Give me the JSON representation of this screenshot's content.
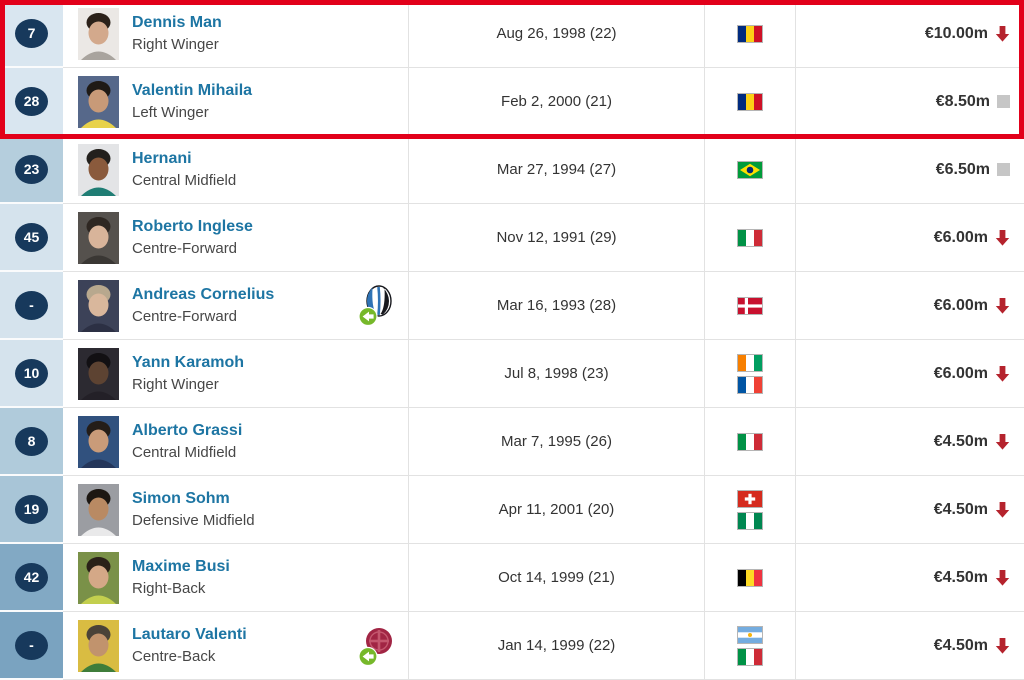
{
  "colors": {
    "highlight_border": "#e2001a",
    "badge_bg": "#17395c",
    "badge_text": "#ffffff",
    "name_link": "#1d75a3",
    "position_text": "#474747",
    "date_text": "#333333",
    "value_text": "#333333",
    "arrow_down": "#b5232d",
    "unchanged_square": "#c6c6c6",
    "row_border": "#e2e2e2",
    "loan_arrow_green": "#76b82a"
  },
  "highlight_box": {
    "rows_highlighted": [
      "Dennis Man",
      "Valentin Mihaila"
    ]
  },
  "players": [
    {
      "number": "7",
      "name": "Dennis Man",
      "position": "Right Winger",
      "birth_date_age": "Aug 26, 1998 (22)",
      "nationalities": [
        "Romania"
      ],
      "market_value": "€10.00m",
      "value_trend": "down",
      "highlighted": true,
      "number_cell_bg": "#d9e6f0",
      "photo_colors": {
        "bg": "#ebe8e5",
        "hair": "#2b2119",
        "skin": "#d3a98c",
        "shirt": "#a9a49e"
      }
    },
    {
      "number": "28",
      "name": "Valentin Mihaila",
      "position": "Left Winger",
      "birth_date_age": "Feb 2, 2000 (21)",
      "nationalities": [
        "Romania"
      ],
      "market_value": "€8.50m",
      "value_trend": "same",
      "highlighted": true,
      "number_cell_bg": "#d9e6f0",
      "photo_colors": {
        "bg": "#56688a",
        "hair": "#1f1a16",
        "skin": "#c89a78",
        "shirt": "#e8d24a"
      }
    },
    {
      "number": "23",
      "name": "Hernani",
      "position": "Central Midfield",
      "birth_date_age": "Mar 27, 1994 (27)",
      "nationalities": [
        "Brazil"
      ],
      "market_value": "€6.50m",
      "value_trend": "same",
      "highlighted": false,
      "number_cell_bg": "#b5cedd",
      "photo_colors": {
        "bg": "#e3e4e6",
        "hair": "#23201d",
        "skin": "#8a5a3c",
        "shirt": "#1f7d74"
      }
    },
    {
      "number": "45",
      "name": "Roberto Inglese",
      "position": "Centre-Forward",
      "birth_date_age": "Nov 12, 1991 (29)",
      "nationalities": [
        "Italy"
      ],
      "market_value": "€6.00m",
      "value_trend": "down",
      "highlighted": false,
      "number_cell_bg": "#d5e3ed",
      "photo_colors": {
        "bg": "#55514d",
        "hair": "#2e2722",
        "skin": "#d8b49a",
        "shirt": "#3a3734"
      }
    },
    {
      "number": "-",
      "name": "Andreas Cornelius",
      "position": "Centre-Forward",
      "birth_date_age": "Mar 16, 1993 (28)",
      "nationalities": [
        "Denmark"
      ],
      "market_value": "€6.00m",
      "value_trend": "down",
      "highlighted": false,
      "number_cell_bg": "#d5e3ed",
      "loan_icon": {
        "name": "loan-club-icon",
        "club_shape": "oval",
        "primary": "#2f73b5",
        "secondary": "#17181d",
        "arrow_color": "#76b82a"
      },
      "photo_colors": {
        "bg": "#3c4258",
        "hair": "#b8a88e",
        "skin": "#d9b79c",
        "shirt": "#2c3044"
      }
    },
    {
      "number": "10",
      "name": "Yann Karamoh",
      "position": "Right Winger",
      "birth_date_age": "Jul 8, 1998 (23)",
      "nationalities": [
        "Ivory Coast",
        "France"
      ],
      "market_value": "€6.00m",
      "value_trend": "down",
      "highlighted": false,
      "number_cell_bg": "#d5e3ed",
      "photo_colors": {
        "bg": "#2c2a31",
        "hair": "#121013",
        "skin": "#5d4332",
        "shirt": "#232027"
      }
    },
    {
      "number": "8",
      "name": "Alberto Grassi",
      "position": "Central Midfield",
      "birth_date_age": "Mar 7, 1995 (26)",
      "nationalities": [
        "Italy"
      ],
      "market_value": "€4.50m",
      "value_trend": "down",
      "highlighted": false,
      "number_cell_bg": "#b0cbdb",
      "photo_colors": {
        "bg": "#31517e",
        "hair": "#241d18",
        "skin": "#c99b79",
        "shirt": "#24365a"
      }
    },
    {
      "number": "19",
      "name": "Simon Sohm",
      "position": "Defensive Midfield",
      "birth_date_age": "Apr 11, 2001 (20)",
      "nationalities": [
        "Switzerland",
        "Nigeria"
      ],
      "market_value": "€4.50m",
      "value_trend": "down",
      "highlighted": false,
      "number_cell_bg": "#a8c5d7",
      "photo_colors": {
        "bg": "#9b9da2",
        "hair": "#1c1712",
        "skin": "#b98a63",
        "shirt": "#e9e9ea"
      }
    },
    {
      "number": "42",
      "name": "Maxime Busi",
      "position": "Right-Back",
      "birth_date_age": "Oct 14, 1999 (21)",
      "nationalities": [
        "Belgium"
      ],
      "market_value": "€4.50m",
      "value_trend": "down",
      "highlighted": false,
      "number_cell_bg": "#82a9c4",
      "photo_colors": {
        "bg": "#7a9148",
        "hair": "#2a2118",
        "skin": "#d4a887",
        "shirt": "#c3cf4e"
      }
    },
    {
      "number": "-",
      "name": "Lautaro Valenti",
      "position": "Centre-Back",
      "birth_date_age": "Jan 14, 1999 (22)",
      "nationalities": [
        "Argentina",
        "Italy"
      ],
      "market_value": "€4.50m",
      "value_trend": "down",
      "highlighted": false,
      "number_cell_bg": "#7aa3c0",
      "loan_icon": {
        "name": "loan-club-icon",
        "club_shape": "circle",
        "primary": "#a12544",
        "secondary": "#c4576e",
        "arrow_color": "#76b82a"
      },
      "photo_colors": {
        "bg": "#d9bc42",
        "hair": "#4a4238",
        "skin": "#c1936d",
        "shirt": "#3f7d3a"
      }
    }
  ]
}
